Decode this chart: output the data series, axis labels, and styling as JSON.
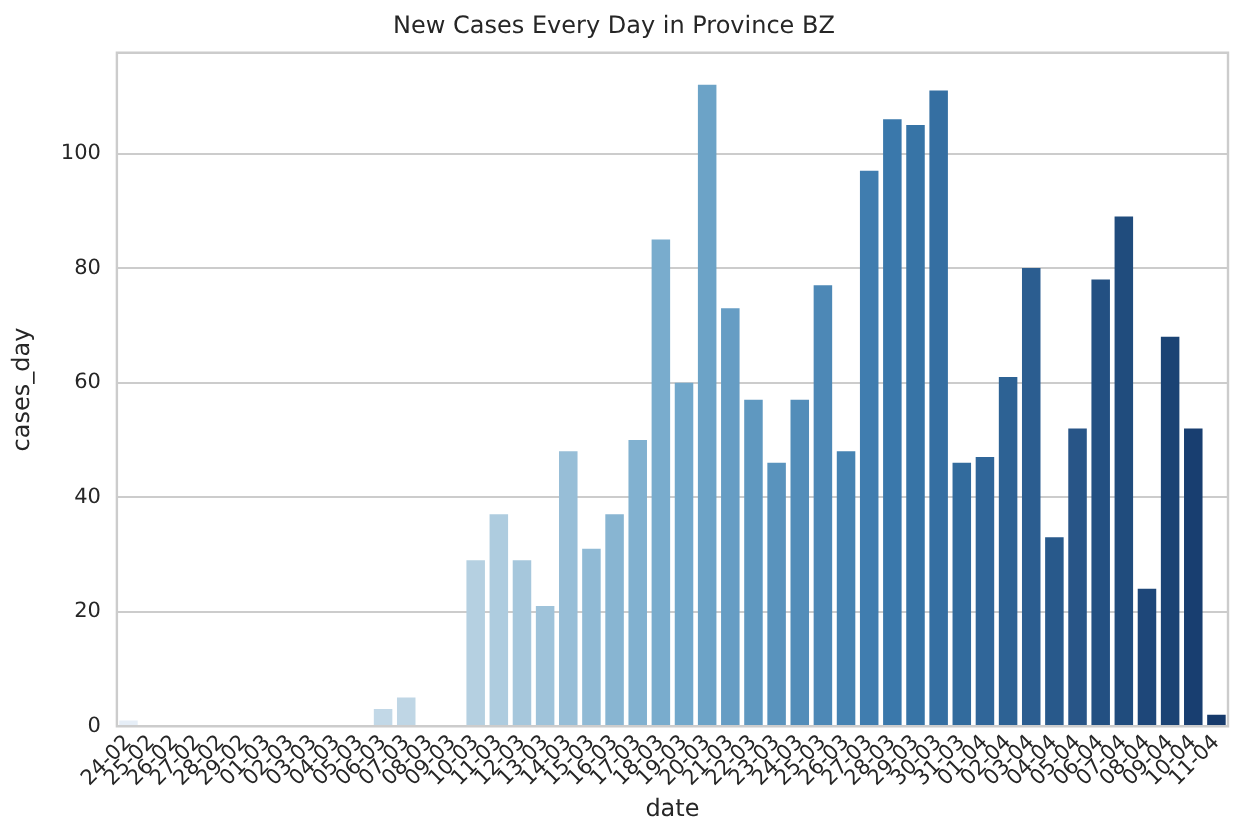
{
  "chart_data": {
    "type": "bar",
    "title": "New Cases Every Day in Province BZ",
    "xlabel": "date",
    "ylabel": "cases_day",
    "categories": [
      "24-02",
      "25-02",
      "26-02",
      "27-02",
      "28-02",
      "29-02",
      "01-03",
      "02-03",
      "03-03",
      "04-03",
      "05-03",
      "06-03",
      "07-03",
      "08-03",
      "09-03",
      "10-03",
      "11-03",
      "12-03",
      "13-03",
      "14-03",
      "15-03",
      "16-03",
      "17-03",
      "18-03",
      "19-03",
      "20-03",
      "21-03",
      "22-03",
      "23-03",
      "24-03",
      "25-03",
      "26-03",
      "27-03",
      "28-03",
      "29-03",
      "30-03",
      "31-03",
      "01-04",
      "02-04",
      "03-04",
      "04-04",
      "05-04",
      "06-04",
      "07-04",
      "08-04",
      "09-04",
      "10-04",
      "11-04"
    ],
    "values": [
      1,
      0,
      0,
      0,
      0,
      0,
      0,
      0,
      0,
      0,
      0,
      3,
      5,
      0,
      0,
      29,
      37,
      29,
      21,
      48,
      31,
      37,
      50,
      85,
      60,
      112,
      73,
      57,
      46,
      57,
      77,
      48,
      97,
      106,
      105,
      111,
      46,
      47,
      61,
      80,
      33,
      52,
      78,
      89,
      24,
      68,
      52,
      2
    ],
    "colors": [
      "#e6eef7",
      "#e3ecf6",
      "#dfeaf4",
      "#dce8f3",
      "#d9e6f1",
      "#d6e4f0",
      "#d2e2ee",
      "#cfe0ed",
      "#ccdeeb",
      "#c9dcea",
      "#c5dae8",
      "#c2d8e7",
      "#bfd6e5",
      "#bbd4e4",
      "#b8d2e2",
      "#b5d0e1",
      "#aeccdf",
      "#a6c7dc",
      "#9fc3da",
      "#97bed7",
      "#90bad5",
      "#88b5d2",
      "#81b1d0",
      "#79accd",
      "#72a8cb",
      "#6ca3c7",
      "#669dc4",
      "#5f98c0",
      "#5993bd",
      "#538db9",
      "#4d88b6",
      "#4683b2",
      "#407daf",
      "#3a78ab",
      "#3774a6",
      "#356fa2",
      "#326b9d",
      "#306699",
      "#2d6294",
      "#2b5d90",
      "#28598b",
      "#285587",
      "#235082",
      "#204c7d",
      "#1e4779",
      "#1b4374",
      "#183e70",
      "#163a6b"
    ],
    "ylim": [
      0,
      117.6
    ],
    "yticks": [
      0,
      20,
      40,
      60,
      80,
      100
    ],
    "grid": "y",
    "legend": false
  }
}
